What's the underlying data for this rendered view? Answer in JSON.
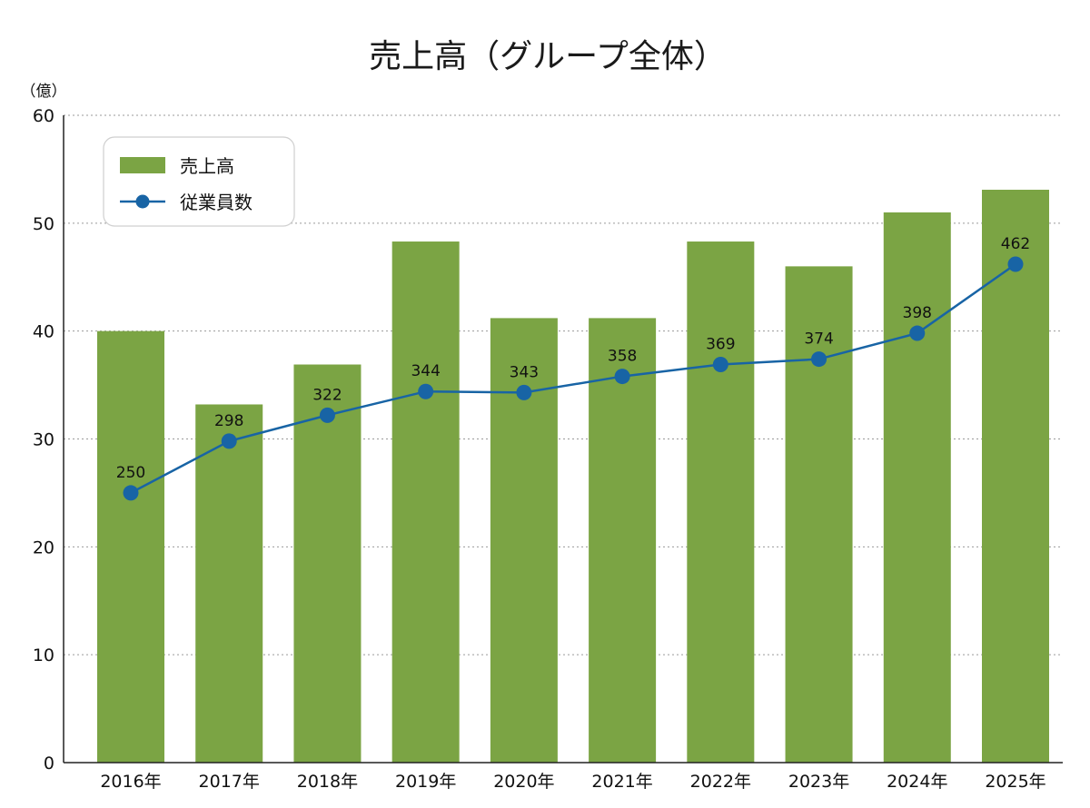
{
  "chart_data": {
    "type": "bar",
    "title": "売上高（グループ全体）",
    "y_unit_label": "（億）",
    "categories": [
      "2016年",
      "2017年",
      "2018年",
      "2019年",
      "2020年",
      "2021年",
      "2022年",
      "2023年",
      "2024年",
      "2025年"
    ],
    "series": [
      {
        "name": "売上高",
        "type": "bar",
        "axis": "left",
        "color": "#7ba444",
        "values": [
          40,
          33.2,
          36.9,
          48.3,
          41.2,
          41.2,
          48.3,
          46,
          51,
          53.1
        ]
      },
      {
        "name": "従業員数",
        "type": "line",
        "axis": "right-hidden",
        "color": "#1864a5",
        "values": [
          250,
          298,
          322,
          344,
          343,
          358,
          369,
          374,
          398,
          462
        ],
        "data_labels": [
          "250",
          "298",
          "322",
          "344",
          "343",
          "358",
          "369",
          "374",
          "398",
          "462"
        ]
      }
    ],
    "y_ticks": [
      "0",
      "10",
      "20",
      "30",
      "40",
      "50",
      "60"
    ],
    "ylim": [
      0,
      60
    ],
    "grid": true,
    "legend": {
      "position": "top-left",
      "entries": [
        "売上高",
        "従業員数"
      ]
    }
  }
}
